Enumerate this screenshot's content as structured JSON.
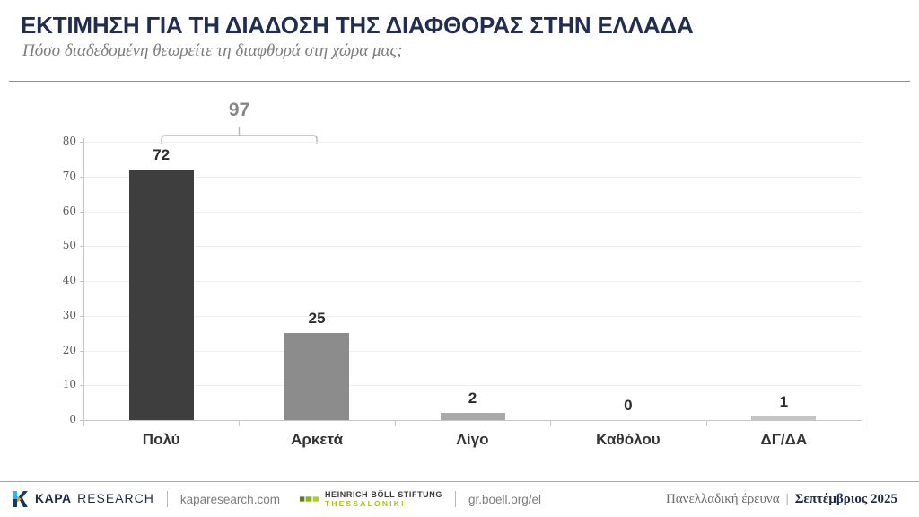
{
  "header": {
    "title": "ΕΚΤΙΜΗΣΗ ΓΙΑ ΤΗ ΔΙΑΔΟΣΗ ΤΗΣ ΔΙΑΦΘΟΡΑΣ ΣΤΗΝ ΕΛΛΑΔΑ",
    "subtitle": "Πόσο διαδεδομένη θεωρείτε τη διαφθορά στη χώρα μας;"
  },
  "chart_data": {
    "type": "bar",
    "categories": [
      "Πολύ",
      "Αρκετά",
      "Λίγο",
      "Καθόλου",
      "ΔΓ/ΔΑ"
    ],
    "values": [
      72,
      25,
      2,
      0,
      1
    ],
    "bar_colors": [
      "#3e3e3e",
      "#8c8c8c",
      "#a9a9a9",
      "#a9a9a9",
      "#c3c3c3"
    ],
    "title": "",
    "xlabel": "",
    "ylabel": "",
    "ylim": [
      0,
      80
    ],
    "ytick_step": 10,
    "grid": true,
    "legend": false,
    "annotation": {
      "label": "97",
      "span_category_indices": [
        0,
        1
      ],
      "note": "bracket over Πολύ + Αρκετά showing combined 97"
    }
  },
  "footer": {
    "kapa": {
      "brand_bold": "KAPA",
      "brand_regular": "RESEARCH",
      "site": "kaparesearch.com"
    },
    "boell": {
      "line1": "HEINRICH BÖLL STIFTUNG",
      "line2": "THESSALONIKI",
      "site": "gr.boell.org/el"
    },
    "right": {
      "survey": "Πανελλαδική έρευνα",
      "date": "Σεπτέμβριος 2025"
    }
  },
  "colors": {
    "title_navy": "#222d52",
    "subtitle_gray": "#7c7c7c",
    "bracket_gray": "#b8b8b8",
    "value_label": "#2b2b2b",
    "gridline": "#efefef",
    "axis": "#c6c6c6",
    "boell_green": "#a2c617",
    "kapa_cyan": "#29b8e5",
    "kapa_orange": "#f7931e",
    "footer_navy": "#1b2a4a"
  }
}
